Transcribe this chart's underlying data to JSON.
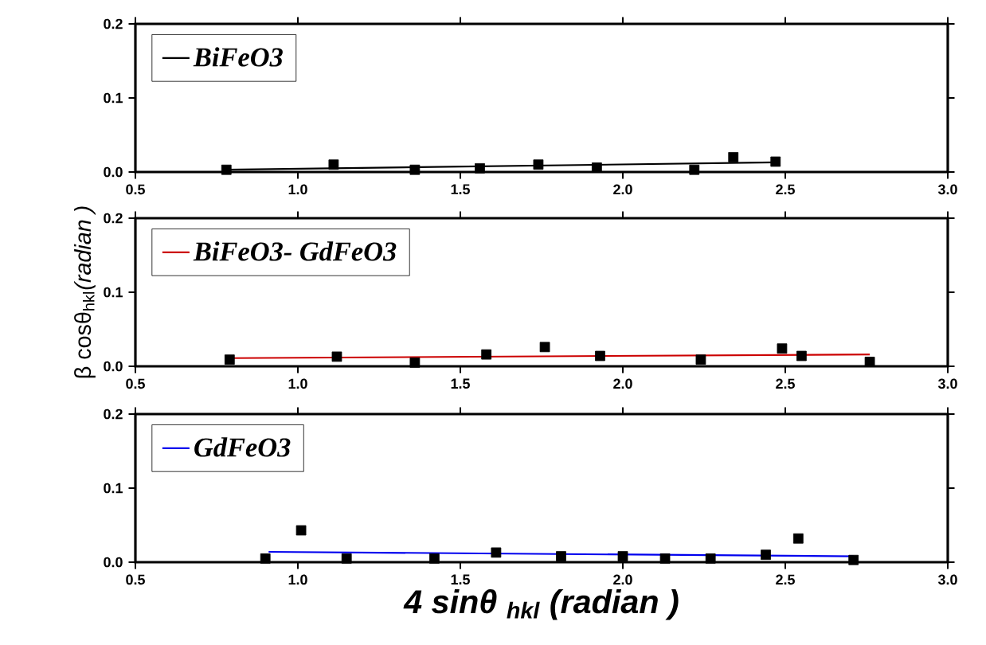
{
  "chart_data": [
    {
      "type": "scatter",
      "legend": "top left",
      "xlim": [
        0.5,
        3.0
      ],
      "ylim": [
        0,
        0.2
      ],
      "xticks": [
        {
          "value": 0.5,
          "label": "0.5"
        },
        {
          "value": 1.0,
          "label": "1.0"
        },
        {
          "value": 1.5,
          "label": "1.5"
        },
        {
          "value": 2.0,
          "label": "2.0"
        },
        {
          "value": 2.5,
          "label": "2.5"
        },
        {
          "value": 3.0,
          "label": "3.0"
        }
      ],
      "yticks": [
        {
          "value": 0,
          "label": "0.0"
        },
        {
          "value": 0.1,
          "label": "0.1"
        },
        {
          "value": 0.2,
          "label": "0.2"
        }
      ],
      "series": [
        {
          "marker": "square",
          "color": "#000000",
          "x": [
            0.78,
            1.11,
            1.36,
            1.56,
            1.74,
            1.92,
            2.22,
            2.34,
            2.47
          ],
          "values": [
            0.003,
            0.01,
            0.003,
            0.005,
            0.01,
            0.006,
            0.003,
            0.02,
            0.014
          ]
        },
        {
          "type": "line",
          "marker": "none",
          "name": "BiFeO3",
          "color": "#000000",
          "x": [
            0.78,
            2.47
          ],
          "values": [
            0.003,
            0.013
          ]
        }
      ]
    },
    {
      "type": "scatter",
      "legend": "top left",
      "xlim": [
        0.5,
        3.0
      ],
      "ylim": [
        0,
        0.2
      ],
      "ylabel": "β cosθ$_{hkl}$*(radian )*",
      "xticks": [
        {
          "value": 0.5,
          "label": "0.5"
        },
        {
          "value": 1.0,
          "label": "1.0"
        },
        {
          "value": 1.5,
          "label": "1.5"
        },
        {
          "value": 2.0,
          "label": "2.0"
        },
        {
          "value": 2.5,
          "label": "2.5"
        },
        {
          "value": 3.0,
          "label": "3.0"
        }
      ],
      "yticks": [
        {
          "value": 0,
          "label": "0.0"
        },
        {
          "value": 0.1,
          "label": "0.1"
        },
        {
          "value": 0.2,
          "label": "0.2"
        }
      ],
      "series": [
        {
          "marker": "square",
          "color": "#000000",
          "x": [
            0.79,
            1.12,
            1.36,
            1.58,
            1.76,
            1.93,
            2.24,
            2.49,
            2.55,
            2.76
          ],
          "values": [
            0.009,
            0.013,
            0.005,
            0.016,
            0.026,
            0.014,
            0.009,
            0.024,
            0.014,
            0.006
          ]
        },
        {
          "type": "line",
          "marker": "none",
          "name": "BiFeO3- GdFeO3",
          "color": "#cc0000",
          "x": [
            0.79,
            2.76
          ],
          "values": [
            0.011,
            0.016
          ]
        }
      ]
    },
    {
      "type": "scatter",
      "legend": "top left",
      "xlim": [
        0.5,
        3.0
      ],
      "ylim": [
        0,
        0.2
      ],
      "xlabel": "4 sinθ $_{hkl}$ (radian )",
      "xticks": [
        {
          "value": 0.5,
          "label": "0.5"
        },
        {
          "value": 1.0,
          "label": "1.0"
        },
        {
          "value": 1.5,
          "label": "1.5"
        },
        {
          "value": 2.0,
          "label": "2.0"
        },
        {
          "value": 2.5,
          "label": "2.5"
        },
        {
          "value": 3.0,
          "label": "3.0"
        }
      ],
      "yticks": [
        {
          "value": 0,
          "label": "0.0"
        },
        {
          "value": 0.1,
          "label": "0.1"
        },
        {
          "value": 0.2,
          "label": "0.2"
        }
      ],
      "series": [
        {
          "marker": "square",
          "color": "#000000",
          "x": [
            0.9,
            1.01,
            1.15,
            1.42,
            1.61,
            1.81,
            2.0,
            2.13,
            2.27,
            2.44,
            2.54,
            2.71
          ],
          "values": [
            0.005,
            0.043,
            0.005,
            0.005,
            0.013,
            0.008,
            0.008,
            0.005,
            0.005,
            0.01,
            0.032,
            0.003
          ]
        },
        {
          "type": "line",
          "marker": "none",
          "name": "GdFeO3",
          "color": "#0000ee",
          "x": [
            0.91,
            2.71
          ],
          "values": [
            0.014,
            0.008
          ]
        }
      ]
    }
  ]
}
